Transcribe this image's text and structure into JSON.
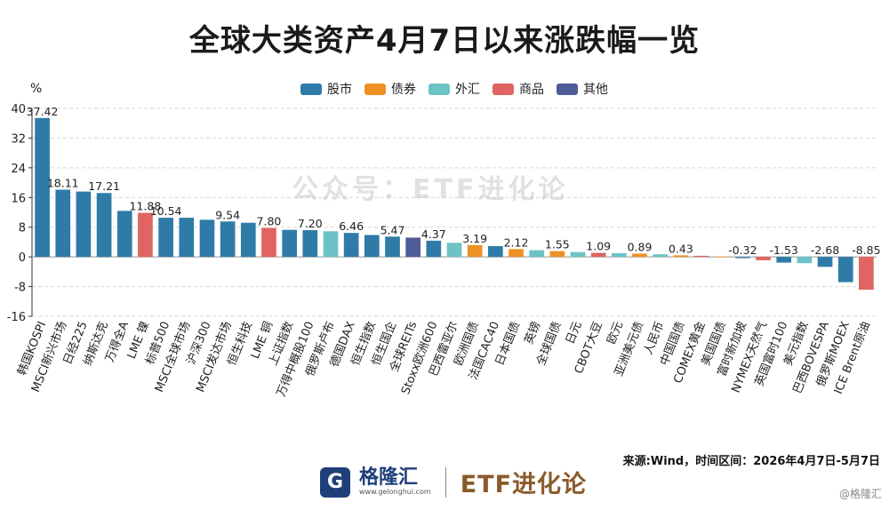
{
  "title": "全球大类资产4月7日以来涨跌幅一览",
  "watermark": "公众号：ETF进化论",
  "source": "来源:Wind，时间区间：2026年4月7日-5月7日",
  "footer": {
    "logo_char": "G",
    "logo_name": "格隆汇",
    "logo_url": "www.gelonghui.com",
    "brand": "ETF进化论",
    "corner": "@格隆汇"
  },
  "colors": {
    "股市": "#2f7ba8",
    "债券": "#ee9124",
    "外汇": "#6cc3c5",
    "商品": "#e06462",
    "其他": "#4e5b96"
  },
  "chart_data": {
    "type": "bar",
    "ylabel": "%",
    "ylim": [
      -16,
      40
    ],
    "yticks": [
      40,
      32,
      24,
      16,
      8,
      0,
      -8,
      -16
    ],
    "grid": true,
    "legend": {
      "position": "top-center",
      "entries": [
        "股市",
        "债券",
        "外汇",
        "商品",
        "其他"
      ]
    },
    "categories": [
      "韩国KOSPI",
      "MSCI新兴市场",
      "日经225",
      "纳斯达克",
      "万得全A",
      "LME 镍",
      "标普500",
      "MSCI全球市场",
      "沪深300",
      "MSCI发达市场",
      "恒生科技",
      "LME 铜",
      "上证指数",
      "万得中概股100",
      "俄罗斯卢布",
      "德国DAX",
      "恒生指数",
      "恒生国企",
      "全球REITs",
      "Stoxx欧洲600",
      "巴西雷亚尔",
      "欧洲国债",
      "法国CAC40",
      "日本国债",
      "英镑",
      "全球国债",
      "日元",
      "CBOT大豆",
      "欧元",
      "亚洲美元债",
      "人民币",
      "中国国债",
      "COMEX黄金",
      "美国国债",
      "富时新加坡",
      "NYMEX天然气",
      "英国富时100",
      "美元指数",
      "巴西BOVESPA",
      "俄罗斯MOEX",
      "ICE Brent原油"
    ],
    "values": [
      37.42,
      18.11,
      17.6,
      17.21,
      12.4,
      11.88,
      10.54,
      10.54,
      10.0,
      9.54,
      9.2,
      7.8,
      7.3,
      7.2,
      6.9,
      6.46,
      5.9,
      5.47,
      5.2,
      4.37,
      3.8,
      3.19,
      2.9,
      2.12,
      1.8,
      1.55,
      1.3,
      1.09,
      1.0,
      0.89,
      0.7,
      0.43,
      0.3,
      0.1,
      -0.32,
      -0.9,
      -1.53,
      -1.7,
      -2.68,
      -6.8,
      -8.85
    ],
    "groups": [
      "股市",
      "股市",
      "股市",
      "股市",
      "股市",
      "商品",
      "股市",
      "股市",
      "股市",
      "股市",
      "股市",
      "商品",
      "股市",
      "股市",
      "外汇",
      "股市",
      "股市",
      "股市",
      "其他",
      "股市",
      "外汇",
      "债券",
      "股市",
      "债券",
      "外汇",
      "债券",
      "外汇",
      "商品",
      "外汇",
      "债券",
      "外汇",
      "债券",
      "商品",
      "债券",
      "股市",
      "商品",
      "股市",
      "外汇",
      "股市",
      "股市",
      "商品"
    ],
    "data_labels": [
      "37.42",
      "18.11",
      "",
      "17.21",
      "",
      "11.88",
      "10.54",
      "",
      "",
      "9.54",
      "",
      "7.80",
      "",
      "7.20",
      "",
      "6.46",
      "",
      "5.47",
      "",
      "4.37",
      "",
      "3.19",
      "",
      "2.12",
      "",
      "1.55",
      "",
      "1.09",
      "",
      "0.89",
      "",
      "0.43",
      "",
      "",
      "-0.32",
      "",
      "-1.53",
      "",
      "-2.68",
      "",
      "-8.85"
    ]
  }
}
